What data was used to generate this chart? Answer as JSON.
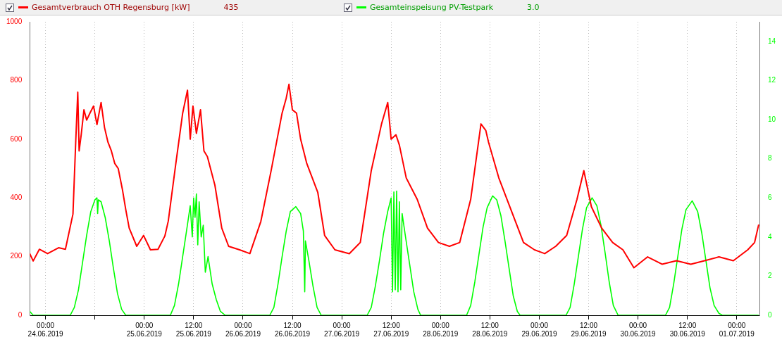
{
  "chart_data": {
    "type": "line",
    "legend": "top",
    "grid": "x",
    "annotations": [
      "435",
      "3.0"
    ],
    "xlim": [
      "2019-06-23T20:10",
      "2019-07-01T05:40"
    ],
    "xticks": [
      {
        "value": "2019-06-24T00:00",
        "label": "00:00 24.06.2019"
      },
      {
        "value": "2019-06-24T12:00",
        "label": null
      },
      {
        "value": "2019-06-25T00:00",
        "label": "00:00 25.06.2019"
      },
      {
        "value": "2019-06-25T12:00",
        "label": "12:00 25.06.2019"
      },
      {
        "value": "2019-06-26T00:00",
        "label": "00:00 26.06.2019"
      },
      {
        "value": "2019-06-26T12:00",
        "label": "12:00 26.06.2019"
      },
      {
        "value": "2019-06-27T00:00",
        "label": "00:00 27.06.2019"
      },
      {
        "value": "2019-06-27T12:00",
        "label": "12:00 27.06.2019"
      },
      {
        "value": "2019-06-28T00:00",
        "label": "00:00 28.06.2019"
      },
      {
        "value": "2019-06-28T12:00",
        "label": "12:00 28.06.2019"
      },
      {
        "value": "2019-06-29T00:00",
        "label": "00:00 29.06.2019"
      },
      {
        "value": "2019-06-29T12:00",
        "label": "12:00 29.06.2019"
      },
      {
        "value": "2019-06-30T00:00",
        "label": "00:00 30.06.2019"
      },
      {
        "value": "2019-06-30T12:00",
        "label": "12:00 30.06.2019"
      },
      {
        "value": "2019-07-01T00:00",
        "label": "00:00 01.07.2019"
      }
    ],
    "ylim": [
      0,
      1000
    ],
    "yticks": [
      0,
      200,
      400,
      600,
      800,
      1000
    ],
    "y2lim": [
      0,
      15
    ],
    "y2ticks": [
      0,
      2,
      4,
      6,
      8,
      10,
      12,
      14
    ],
    "series": [
      {
        "name": "Gesamtverbrauch OTH Regensburg [kW]",
        "color": "#ff0000",
        "x": [
          "2019-06-23T20:10",
          "2019-06-23T21:00",
          "2019-06-23T22:30",
          "2019-06-24T00:30",
          "2019-06-24T03:10",
          "2019-06-24T04:50",
          "2019-06-24T06:40",
          "2019-06-24T07:20",
          "2019-06-24T07:50",
          "2019-06-24T08:10",
          "2019-06-24T08:40",
          "2019-06-24T09:20",
          "2019-06-24T10:00",
          "2019-06-24T10:50",
          "2019-06-24T11:40",
          "2019-06-24T12:30",
          "2019-06-24T13:30",
          "2019-06-24T14:20",
          "2019-06-24T15:10",
          "2019-06-24T16:00",
          "2019-06-24T16:50",
          "2019-06-24T17:40",
          "2019-06-24T18:40",
          "2019-06-24T19:30",
          "2019-06-24T20:20",
          "2019-06-24T22:10",
          "2019-06-24T23:50",
          "2019-06-25T01:30",
          "2019-06-25T03:20",
          "2019-06-25T05:00",
          "2019-06-25T05:50",
          "2019-06-25T07:40",
          "2019-06-25T09:20",
          "2019-06-25T10:30",
          "2019-06-25T11:10",
          "2019-06-25T11:50",
          "2019-06-25T12:40",
          "2019-06-25T13:40",
          "2019-06-25T14:30",
          "2019-06-25T15:20",
          "2019-06-25T17:10",
          "2019-06-25T18:50",
          "2019-06-25T20:30",
          "2019-06-25T23:10",
          "2019-06-26T01:40",
          "2019-06-26T04:20",
          "2019-06-26T06:50",
          "2019-06-26T09:30",
          "2019-06-26T10:30",
          "2019-06-26T11:10",
          "2019-06-26T12:00",
          "2019-06-26T13:00",
          "2019-06-26T14:00",
          "2019-06-26T15:30",
          "2019-06-26T18:10",
          "2019-06-26T19:50",
          "2019-06-26T22:20",
          "2019-06-27T01:50",
          "2019-06-27T04:30",
          "2019-06-27T07:10",
          "2019-06-27T09:40",
          "2019-06-27T11:10",
          "2019-06-27T12:00",
          "2019-06-27T13:10",
          "2019-06-27T14:00",
          "2019-06-27T15:40",
          "2019-06-27T18:20",
          "2019-06-27T20:50",
          "2019-06-27T23:30",
          "2019-06-28T02:10",
          "2019-06-28T04:40",
          "2019-06-28T07:20",
          "2019-06-28T09:50",
          "2019-06-28T11:00",
          "2019-06-28T11:40",
          "2019-06-28T14:10",
          "2019-06-28T16:50",
          "2019-06-28T20:10",
          "2019-06-28T22:50",
          "2019-06-29T01:20",
          "2019-06-29T04:00",
          "2019-06-29T06:40",
          "2019-06-29T09:10",
          "2019-06-29T10:50",
          "2019-06-29T12:40",
          "2019-06-29T15:10",
          "2019-06-29T17:50",
          "2019-06-29T20:20",
          "2019-06-29T23:00",
          "2019-06-30T02:20",
          "2019-06-30T05:50",
          "2019-06-30T09:20",
          "2019-06-30T12:50",
          "2019-06-30T16:10",
          "2019-06-30T19:40",
          "2019-06-30T23:10",
          "2019-07-01T02:40",
          "2019-07-01T04:20",
          "2019-07-01T05:20"
        ],
        "values": [
          210,
          185,
          225,
          210,
          230,
          225,
          345,
          590,
          760,
          560,
          615,
          700,
          665,
          690,
          713,
          650,
          725,
          640,
          590,
          560,
          517,
          500,
          430,
          360,
          297,
          235,
          272,
          223,
          225,
          270,
          321,
          517,
          689,
          767,
          600,
          713,
          620,
          700,
          560,
          541,
          443,
          297,
          235,
          223,
          210,
          320,
          493,
          689,
          740,
          787,
          700,
          689,
          600,
          517,
          419,
          272,
          223,
          210,
          248,
          493,
          652,
          725,
          600,
          615,
          580,
          468,
          395,
          297,
          248,
          235,
          248,
          395,
          652,
          630,
          590,
          468,
          370,
          248,
          223,
          210,
          235,
          272,
          395,
          493,
          370,
          297,
          248,
          223,
          162,
          199,
          174,
          186,
          174,
          186,
          199,
          186,
          223,
          248,
          309
        ]
      },
      {
        "name": "Gesamteinspeisung PV-Testpark",
        "color": "#00ff00",
        "axis": "y2",
        "x": [
          "2019-06-23T20:10",
          "2019-06-23T21:00",
          "2019-06-24T06:00",
          "2019-06-24T07:00",
          "2019-06-24T08:00",
          "2019-06-24T09:00",
          "2019-06-24T10:00",
          "2019-06-24T11:00",
          "2019-06-24T12:00",
          "2019-06-24T12:30",
          "2019-06-24T12:40",
          "2019-06-24T12:50",
          "2019-06-24T13:30",
          "2019-06-24T14:30",
          "2019-06-24T15:30",
          "2019-06-24T16:30",
          "2019-06-24T17:30",
          "2019-06-24T18:30",
          "2019-06-24T19:30",
          "2019-06-25T06:20",
          "2019-06-25T07:20",
          "2019-06-25T08:20",
          "2019-06-25T09:20",
          "2019-06-25T10:20",
          "2019-06-25T11:10",
          "2019-06-25T11:40",
          "2019-06-25T12:00",
          "2019-06-25T12:20",
          "2019-06-25T12:40",
          "2019-06-25T13:00",
          "2019-06-25T13:20",
          "2019-06-25T13:50",
          "2019-06-25T14:20",
          "2019-06-25T14:50",
          "2019-06-25T15:30",
          "2019-06-25T16:30",
          "2019-06-25T17:30",
          "2019-06-25T18:30",
          "2019-06-25T19:40",
          "2019-06-26T06:30",
          "2019-06-26T07:30",
          "2019-06-26T08:30",
          "2019-06-26T09:30",
          "2019-06-26T10:30",
          "2019-06-26T11:30",
          "2019-06-26T12:50",
          "2019-06-26T14:00",
          "2019-06-26T14:40",
          "2019-06-26T15:00",
          "2019-06-26T15:10",
          "2019-06-26T16:00",
          "2019-06-26T17:00",
          "2019-06-26T18:00",
          "2019-06-26T19:00",
          "2019-06-27T06:10",
          "2019-06-27T07:10",
          "2019-06-27T08:10",
          "2019-06-27T09:10",
          "2019-06-27T10:10",
          "2019-06-27T11:10",
          "2019-06-27T12:00",
          "2019-06-27T12:20",
          "2019-06-27T12:40",
          "2019-06-27T13:00",
          "2019-06-27T13:20",
          "2019-06-27T13:40",
          "2019-06-27T14:00",
          "2019-06-27T14:20",
          "2019-06-27T14:40",
          "2019-06-27T15:30",
          "2019-06-27T16:30",
          "2019-06-27T17:30",
          "2019-06-27T18:30",
          "2019-06-27T19:10",
          "2019-06-28T06:20",
          "2019-06-28T07:20",
          "2019-06-28T08:20",
          "2019-06-28T09:20",
          "2019-06-28T10:20",
          "2019-06-28T11:20",
          "2019-06-28T12:40",
          "2019-06-28T13:40",
          "2019-06-28T14:40",
          "2019-06-28T15:40",
          "2019-06-28T16:40",
          "2019-06-28T17:40",
          "2019-06-28T18:40",
          "2019-06-28T19:20",
          "2019-06-29T06:30",
          "2019-06-29T07:30",
          "2019-06-29T08:30",
          "2019-06-29T09:30",
          "2019-06-29T10:30",
          "2019-06-29T11:30",
          "2019-06-29T12:50",
          "2019-06-29T14:00",
          "2019-06-29T15:00",
          "2019-06-29T16:00",
          "2019-06-29T17:00",
          "2019-06-29T18:00",
          "2019-06-29T19:10",
          "2019-06-30T06:40",
          "2019-06-30T07:40",
          "2019-06-30T08:40",
          "2019-06-30T09:40",
          "2019-06-30T10:40",
          "2019-06-30T11:40",
          "2019-06-30T13:10",
          "2019-06-30T14:30",
          "2019-06-30T15:30",
          "2019-06-30T16:30",
          "2019-06-30T17:30",
          "2019-06-30T18:30",
          "2019-06-30T19:40",
          "2019-06-30T20:30",
          "2019-07-01T05:20"
        ],
        "values": [
          0.2,
          0,
          0,
          0.4,
          1.3,
          2.7,
          4.1,
          5.3,
          5.9,
          6.0,
          5.2,
          5.9,
          5.8,
          5.0,
          3.8,
          2.4,
          1.1,
          0.3,
          0,
          0,
          0.5,
          1.6,
          3.0,
          4.4,
          5.6,
          4.0,
          6.0,
          5.0,
          6.2,
          3.6,
          5.8,
          4.0,
          4.6,
          2.2,
          3.0,
          1.6,
          0.8,
          0.2,
          0,
          0,
          0.4,
          1.6,
          3.0,
          4.3,
          5.3,
          5.55,
          5.2,
          4.3,
          1.2,
          3.8,
          2.8,
          1.5,
          0.4,
          0,
          0,
          0.4,
          1.5,
          2.8,
          4.2,
          5.3,
          6.0,
          1.2,
          6.3,
          1.3,
          6.35,
          1.2,
          5.8,
          1.3,
          5.2,
          4.0,
          2.6,
          1.2,
          0.3,
          0,
          0,
          0.5,
          1.7,
          3.1,
          4.5,
          5.5,
          6.1,
          5.9,
          5.1,
          3.8,
          2.4,
          1.0,
          0.2,
          0,
          0,
          0.4,
          1.6,
          3.0,
          4.4,
          5.5,
          6.0,
          5.6,
          4.6,
          3.2,
          1.7,
          0.5,
          0,
          0,
          0.4,
          1.6,
          3.0,
          4.4,
          5.4,
          5.85,
          5.3,
          4.2,
          2.8,
          1.4,
          0.5,
          0.1,
          0,
          0
        ]
      }
    ]
  }
}
